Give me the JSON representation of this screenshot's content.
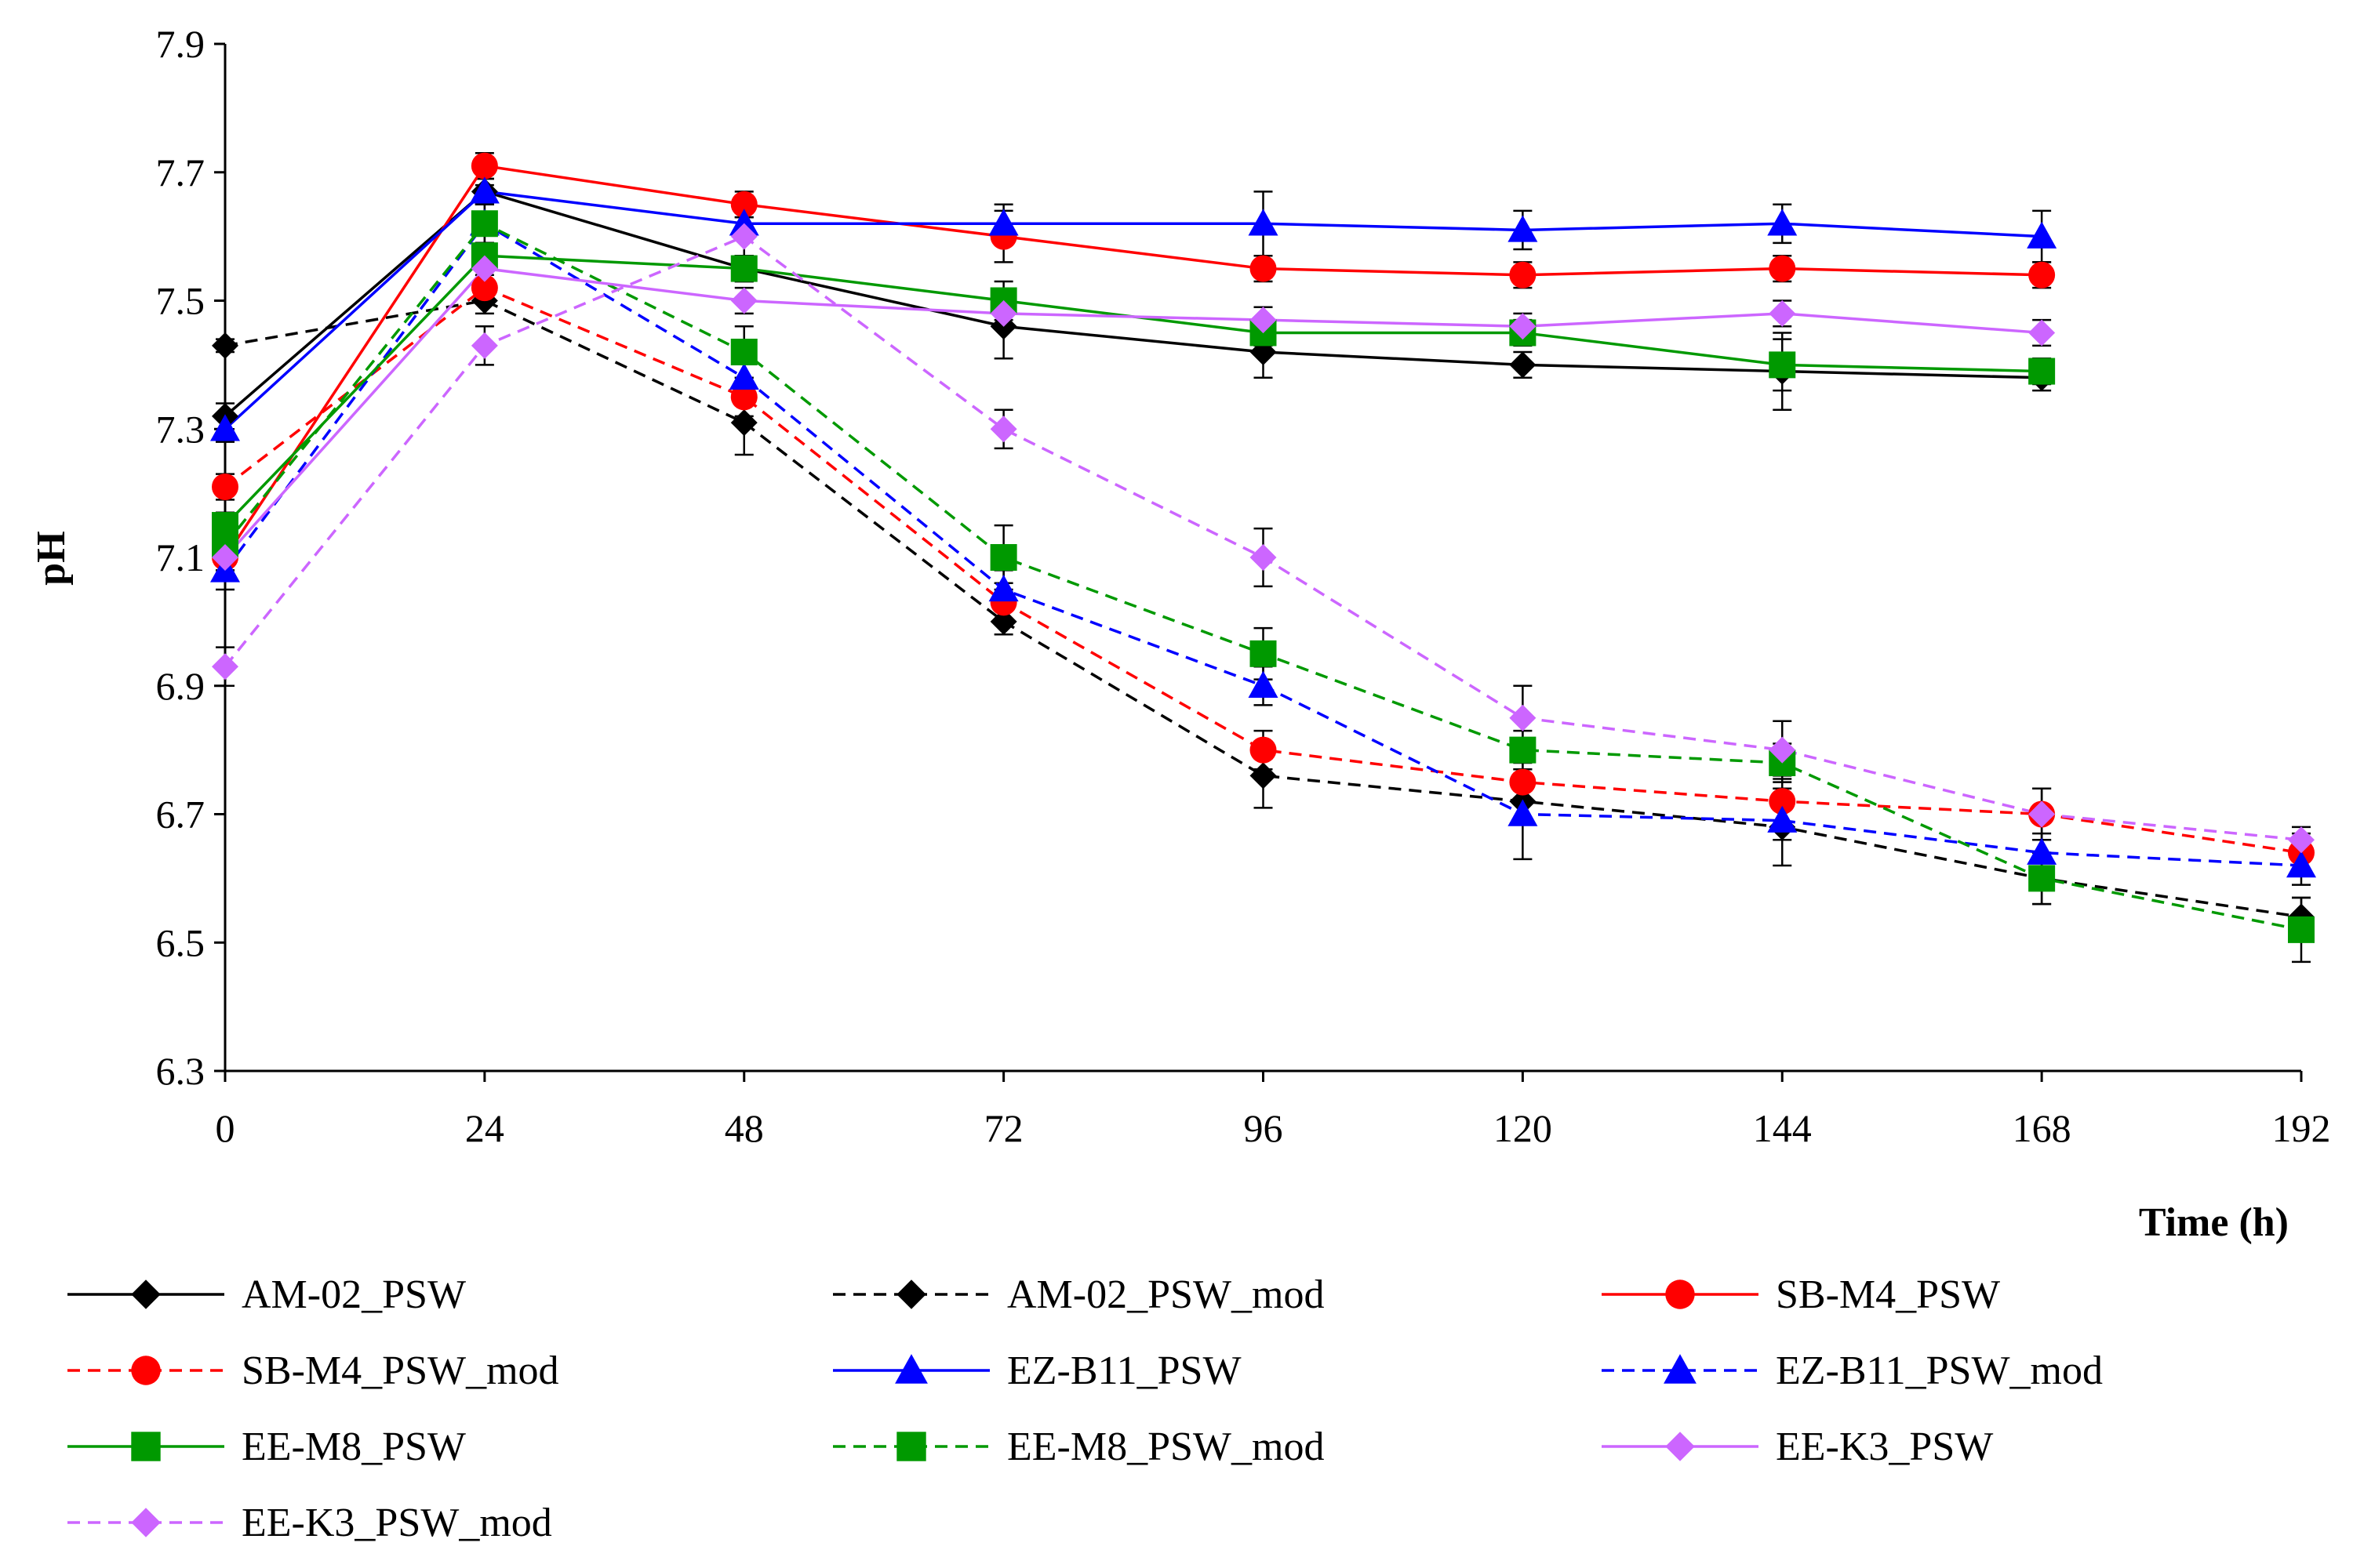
{
  "chart_data": {
    "type": "line",
    "title": "",
    "xlabel": "Time (h)",
    "ylabel": "pH",
    "x": [
      0,
      24,
      48,
      72,
      96,
      120,
      144,
      168,
      192
    ],
    "xticks": [
      "0",
      "24",
      "48",
      "72",
      "96",
      "120",
      "144",
      "168",
      "192"
    ],
    "ylim": [
      6.3,
      7.9
    ],
    "yticks": [
      "6.3",
      "6.5",
      "6.7",
      "6.9",
      "7.1",
      "7.3",
      "7.5",
      "7.7",
      "7.9"
    ],
    "xlim": [
      0,
      192
    ],
    "legend_position": "bottom",
    "series": [
      {
        "name": "AM-02_PSW",
        "color": "#000000",
        "dash": "solid",
        "marker": "diamond",
        "values": [
          7.32,
          7.67,
          7.55,
          7.46,
          7.42,
          7.4,
          7.39,
          7.38,
          null
        ],
        "errors": [
          0.02,
          0.01,
          0.02,
          0.05,
          0.04,
          0.02,
          0.06,
          0.02,
          null
        ]
      },
      {
        "name": "AM-02_PSW_mod",
        "color": "#000000",
        "dash": "dashed",
        "marker": "diamond",
        "values": [
          7.43,
          7.5,
          7.31,
          7.0,
          6.76,
          6.72,
          6.68,
          6.6,
          6.54
        ],
        "errors": [
          0.01,
          0.02,
          0.05,
          0.02,
          0.05,
          0.03,
          0.06,
          0.04,
          0.03
        ]
      },
      {
        "name": "SB-M4_PSW",
        "color": "#ff0000",
        "dash": "solid",
        "marker": "circle",
        "values": [
          7.1,
          7.71,
          7.65,
          7.6,
          7.55,
          7.54,
          7.55,
          7.54,
          null
        ],
        "errors": [
          0.02,
          0.02,
          0.02,
          0.04,
          0.02,
          0.02,
          0.02,
          0.02,
          null
        ]
      },
      {
        "name": "SB-M4_PSW_mod",
        "color": "#ff0000",
        "dash": "dashed",
        "marker": "circle",
        "values": [
          7.21,
          7.52,
          7.35,
          7.03,
          6.8,
          6.75,
          6.72,
          6.7,
          6.64
        ],
        "errors": [
          0.02,
          0.02,
          0.03,
          0.03,
          0.03,
          0.03,
          0.04,
          0.04,
          0.03
        ]
      },
      {
        "name": "EZ-B11_PSW",
        "color": "#0000ff",
        "dash": "solid",
        "marker": "triangle",
        "values": [
          7.3,
          7.67,
          7.62,
          7.62,
          7.62,
          7.61,
          7.62,
          7.6,
          null
        ],
        "errors": [
          0.02,
          0.02,
          0.02,
          0.03,
          0.05,
          0.03,
          0.03,
          0.04,
          null
        ]
      },
      {
        "name": "EZ-B11_PSW_mod",
        "color": "#0000ff",
        "dash": "dashed",
        "marker": "triangle",
        "values": [
          7.08,
          7.62,
          7.38,
          7.05,
          6.9,
          6.7,
          6.69,
          6.64,
          6.62
        ],
        "errors": [
          0.03,
          0.03,
          0.03,
          0.03,
          0.03,
          0.07,
          0.03,
          0.03,
          0.03
        ]
      },
      {
        "name": "EE-M8_PSW",
        "color": "#009900",
        "dash": "solid",
        "marker": "square",
        "values": [
          7.15,
          7.57,
          7.55,
          7.5,
          7.45,
          7.45,
          7.4,
          7.39,
          null
        ],
        "errors": [
          0.02,
          0.02,
          0.02,
          0.03,
          0.02,
          0.02,
          0.04,
          0.02,
          null
        ]
      },
      {
        "name": "EE-M8_PSW_mod",
        "color": "#009900",
        "dash": "dashed",
        "marker": "square",
        "values": [
          7.12,
          7.62,
          7.42,
          7.1,
          6.95,
          6.8,
          6.78,
          6.6,
          6.52
        ],
        "errors": [
          0.03,
          0.03,
          0.04,
          0.05,
          0.04,
          0.03,
          0.03,
          0.04,
          0.05
        ]
      },
      {
        "name": "EE-K3_PSW",
        "color": "#cc66ff",
        "dash": "solid",
        "marker": "diamond",
        "values": [
          7.1,
          7.55,
          7.5,
          7.48,
          7.47,
          7.46,
          7.48,
          7.45,
          null
        ],
        "errors": [
          0.02,
          0.02,
          0.02,
          0.02,
          0.02,
          0.02,
          0.02,
          0.02,
          null
        ]
      },
      {
        "name": "EE-K3_PSW_mod",
        "color": "#cc66ff",
        "dash": "dashed",
        "marker": "diamond",
        "values": [
          6.93,
          7.43,
          7.6,
          7.3,
          7.1,
          6.85,
          6.8,
          6.7,
          6.66
        ],
        "errors": [
          0.03,
          0.03,
          0.03,
          0.03,
          0.045,
          0.05,
          0.045,
          0.04,
          0.02
        ]
      }
    ]
  }
}
